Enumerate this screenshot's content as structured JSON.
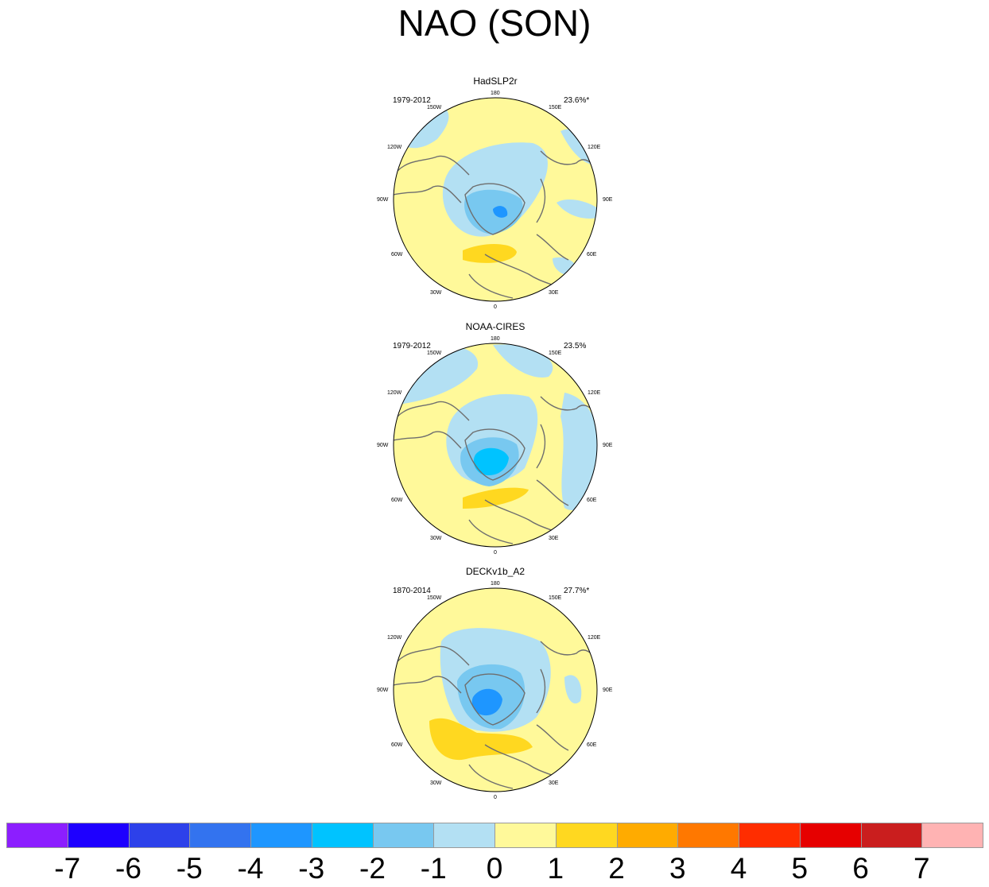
{
  "title": "NAO (SON)",
  "land_color": "#6e6e6e",
  "panels": [
    {
      "title": "HadSLP2r",
      "years": "1979-2012",
      "variance": "23.6%*"
    },
    {
      "title": "NOAA-CIRES",
      "years": "1979-2012",
      "variance": "23.5%"
    },
    {
      "title": "DECKv1b_A2",
      "years": "1870-2014",
      "variance": "27.7%*"
    }
  ],
  "lon_labels": {
    "top": "180",
    "n150w": "150W",
    "n150e": "150E",
    "n120w": "120W",
    "n120e": "120E",
    "w90": "90W",
    "e90": "90E",
    "w60": "60W",
    "e60": "60E",
    "w30": "30W",
    "e30": "30E",
    "bottom": "0"
  },
  "colorbar": {
    "colors": [
      "#8c1eff",
      "#1e00ff",
      "#2d41ea",
      "#3373ef",
      "#1e96ff",
      "#00c3ff",
      "#78c8f0",
      "#b3e0f3",
      "#fff99a",
      "#ffd820",
      "#ffab00",
      "#ff7800",
      "#ff2d00",
      "#e60000",
      "#ca1e1e",
      "#ffb3b3"
    ],
    "ticks": [
      "-7",
      "-6",
      "-5",
      "-4",
      "-3",
      "-2",
      "-1",
      "0",
      "1",
      "2",
      "3",
      "4",
      "5",
      "6",
      "7"
    ]
  }
}
